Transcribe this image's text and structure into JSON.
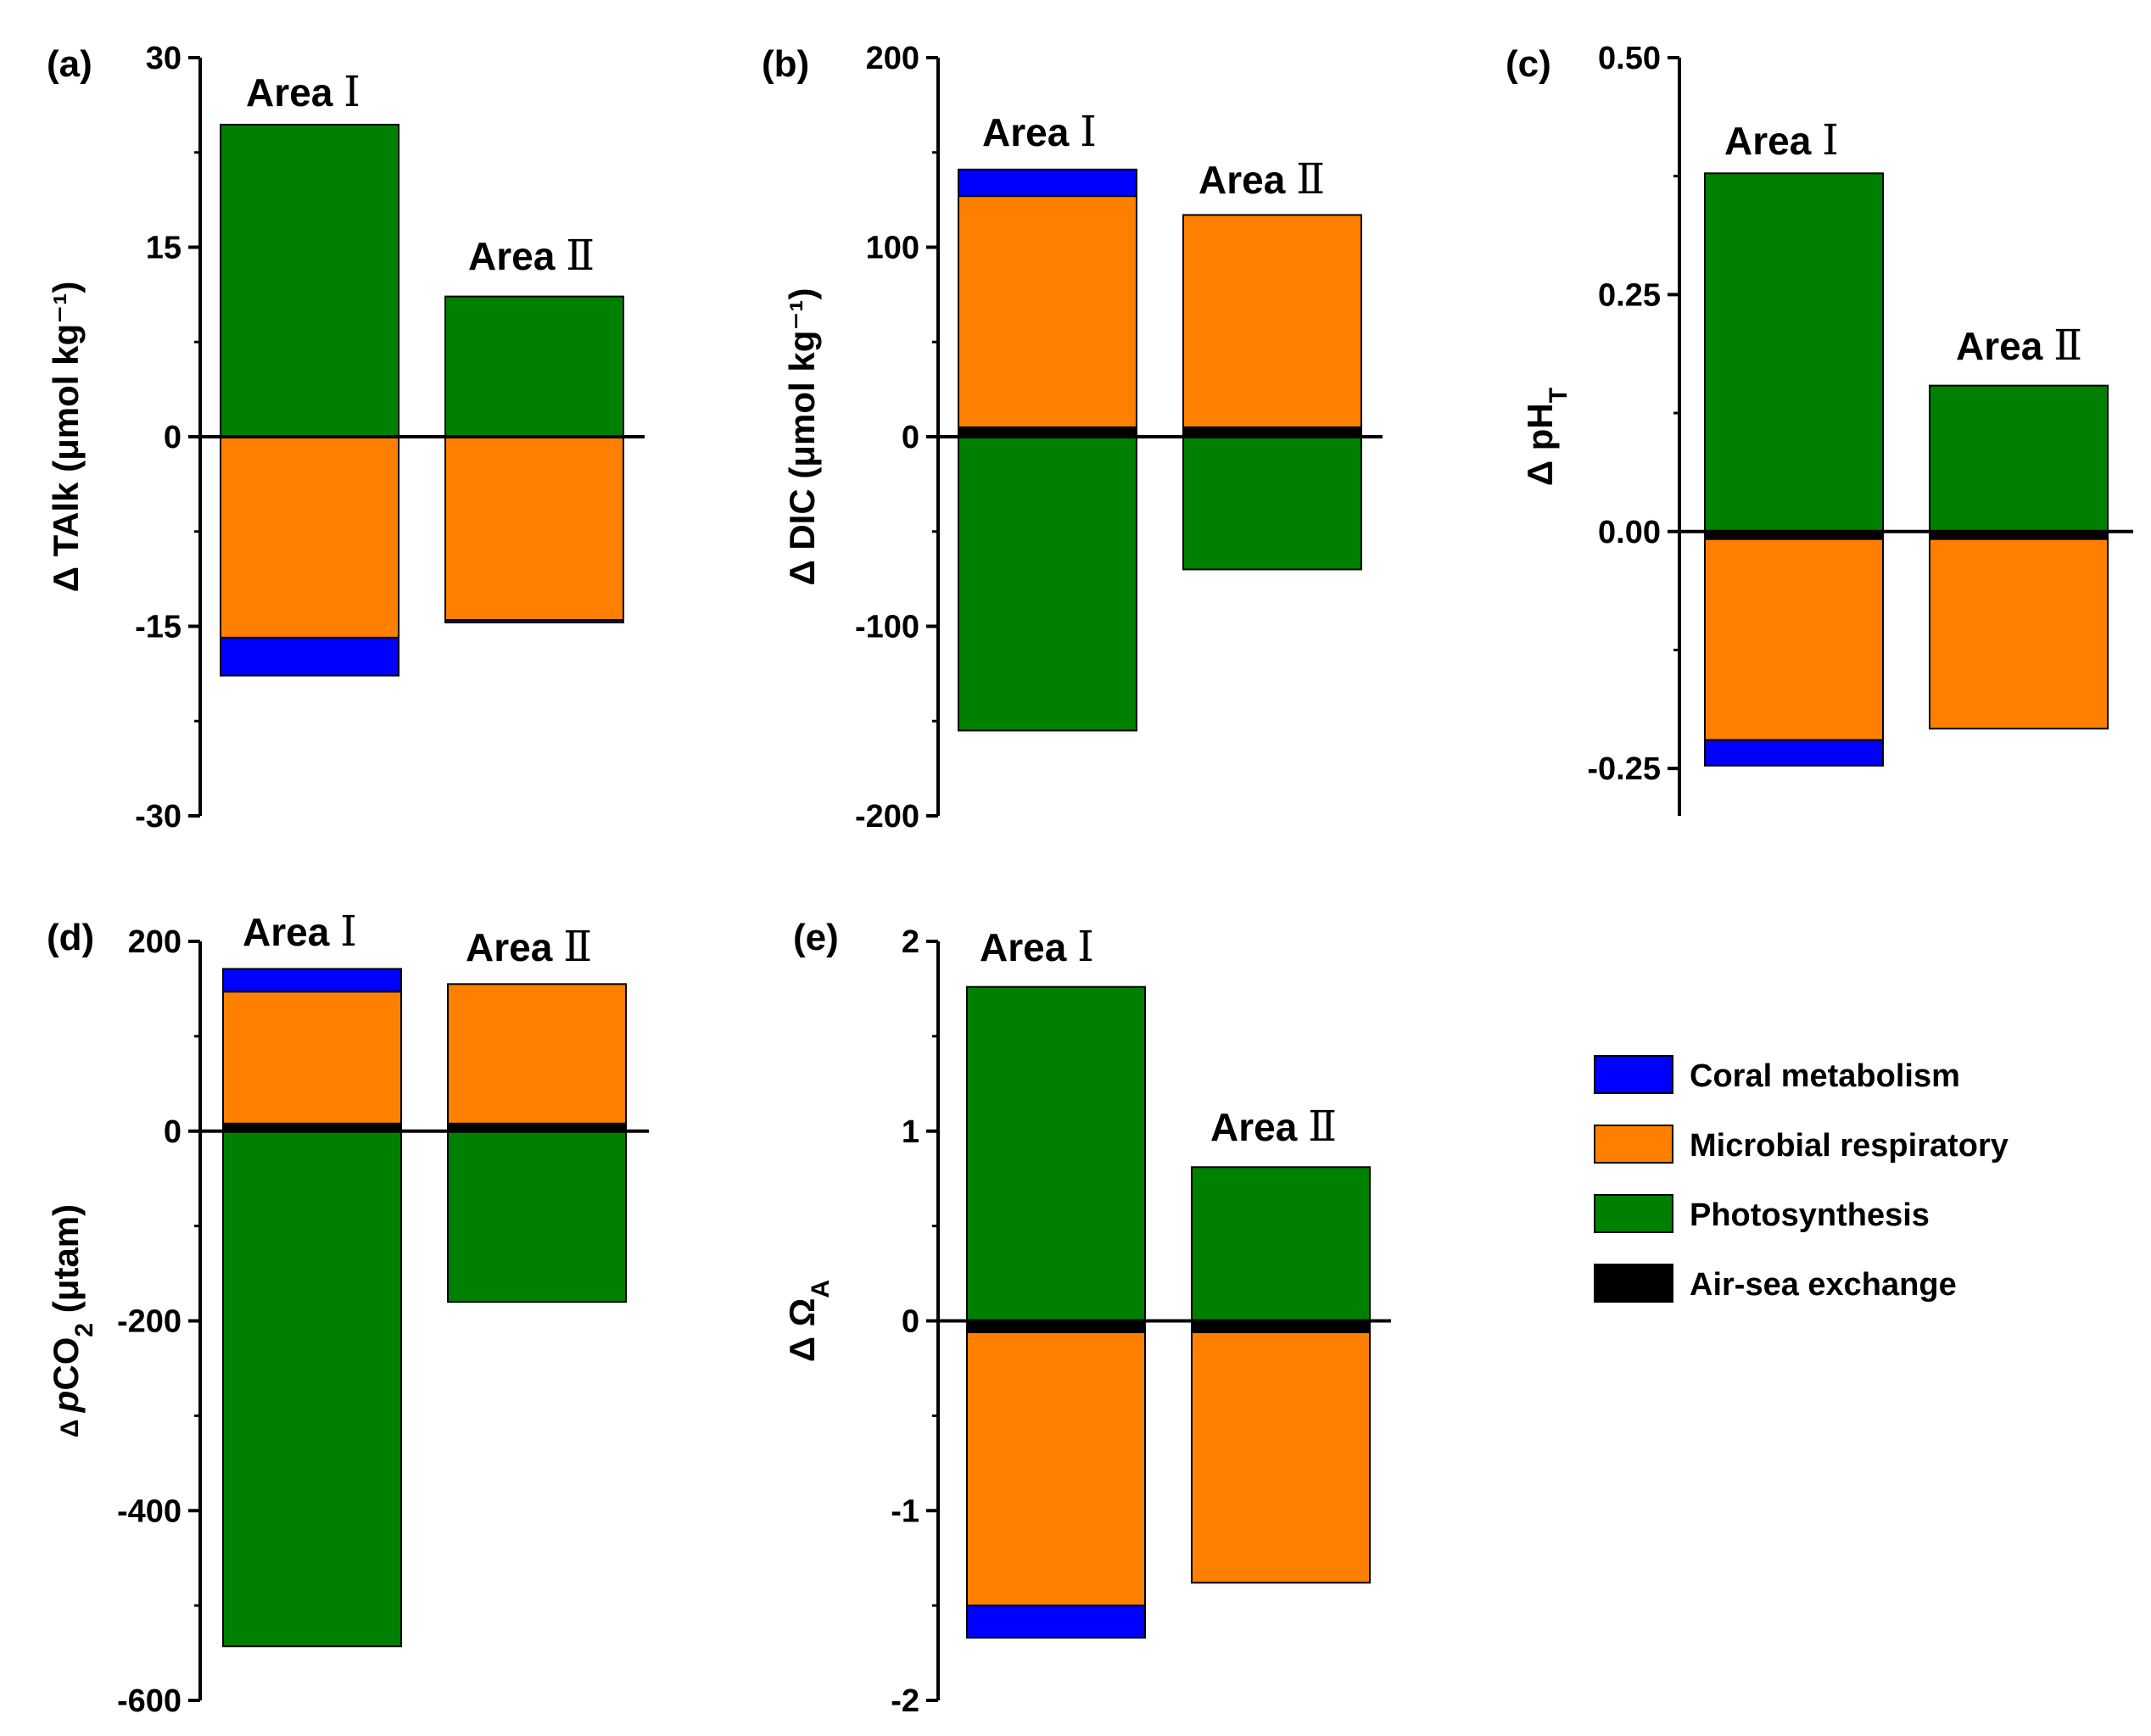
{
  "figure": {
    "legend": [
      {
        "key": "coral",
        "label": "Coral metabolism",
        "color": "#0000FF"
      },
      {
        "key": "microbial",
        "label": "Microbial respiratory",
        "color": "#FF8000"
      },
      {
        "key": "photosynthesis",
        "label": "Photosynthesis",
        "color": "#008000"
      },
      {
        "key": "airsea",
        "label": "Air-sea exchange",
        "color": "#000000"
      }
    ]
  },
  "chart_data": [
    {
      "id": "a",
      "type": "bar",
      "stacked": true,
      "panel_label": "(a)",
      "ylabel": "Δ TAlk (μmol kg⁻¹)",
      "ylim": [
        -30,
        30
      ],
      "yticks": [
        "30",
        "15",
        "0",
        "-15",
        "-30"
      ],
      "ytick_values": [
        30,
        15,
        0,
        -15,
        -30
      ],
      "categories": [
        {
          "area": "Area",
          "numeral": "Ⅰ"
        },
        {
          "area": "Area",
          "numeral": "Ⅱ"
        }
      ],
      "series": [
        {
          "name": "Photosynthesis",
          "values": [
            24.7,
            11.1
          ]
        },
        {
          "name": "Microbial respiratory",
          "values": [
            -15.9,
            -14.5
          ]
        },
        {
          "name": "Coral metabolism",
          "values": [
            -3.0,
            -0.2
          ]
        },
        {
          "name": "Air-sea exchange",
          "values": [
            0,
            0
          ]
        }
      ]
    },
    {
      "id": "b",
      "type": "bar",
      "stacked": true,
      "panel_label": "(b)",
      "ylabel": "Δ DIC (μmol kg⁻¹)",
      "ylim": [
        -200,
        200
      ],
      "yticks": [
        "200",
        "100",
        "0",
        "-100",
        "-200"
      ],
      "ytick_values": [
        200,
        100,
        0,
        -100,
        -200
      ],
      "categories": [
        {
          "area": "Area",
          "numeral": "Ⅰ"
        },
        {
          "area": "Area",
          "numeral": "Ⅱ"
        }
      ],
      "series": [
        {
          "name": "Air-sea exchange",
          "values": [
            5,
            5
          ]
        },
        {
          "name": "Microbial respiratory",
          "values": [
            122,
            112
          ]
        },
        {
          "name": "Coral metabolism",
          "values": [
            14,
            0
          ]
        },
        {
          "name": "Photosynthesis",
          "values": [
            -155,
            -70
          ]
        }
      ]
    },
    {
      "id": "c",
      "type": "bar",
      "stacked": true,
      "panel_label": "(c)",
      "ylabel": "Δ pH",
      "ylabel_sub": "T",
      "ylim": [
        -0.3,
        0.5
      ],
      "yticks": [
        "0.50",
        "0.25",
        "0.00",
        "-0.25"
      ],
      "ytick_values": [
        0.5,
        0.25,
        0,
        -0.25
      ],
      "categories": [
        {
          "area": "Area",
          "numeral": "Ⅰ"
        },
        {
          "area": "Area",
          "numeral": "Ⅱ"
        }
      ],
      "series": [
        {
          "name": "Photosynthesis",
          "values": [
            0.378,
            0.154
          ]
        },
        {
          "name": "Air-sea exchange",
          "values": [
            -0.008,
            -0.008
          ]
        },
        {
          "name": "Microbial respiratory",
          "values": [
            -0.212,
            -0.2
          ]
        },
        {
          "name": "Coral metabolism",
          "values": [
            -0.027,
            0
          ]
        }
      ]
    },
    {
      "id": "d",
      "type": "bar",
      "stacked": true,
      "panel_label": "(d)",
      "ylabel_prefix": "Δ",
      "ylabel_italic": "p",
      "ylabel": "CO",
      "ylabel_sub": "2",
      "ylabel_suffix": " (μtam)",
      "ylim": [
        -600,
        200
      ],
      "yticks": [
        "200",
        "0",
        "-200",
        "-400",
        "-600"
      ],
      "ytick_values": [
        200,
        0,
        -200,
        -400,
        -600
      ],
      "categories": [
        {
          "area": "Area",
          "numeral": "Ⅰ"
        },
        {
          "area": "Area",
          "numeral": "Ⅱ"
        }
      ],
      "series": [
        {
          "name": "Air-sea exchange",
          "values": [
            8,
            8
          ]
        },
        {
          "name": "Microbial respiratory",
          "values": [
            139,
            147
          ]
        },
        {
          "name": "Coral metabolism",
          "values": [
            24,
            0
          ]
        },
        {
          "name": "Photosynthesis",
          "values": [
            -543,
            -180
          ]
        }
      ]
    },
    {
      "id": "e",
      "type": "bar",
      "stacked": true,
      "panel_label": "(e)",
      "ylabel": "Δ Ω",
      "ylabel_sub": "A",
      "ylim": [
        -2,
        2
      ],
      "yticks": [
        "2",
        "1",
        "0",
        "-1",
        "-2"
      ],
      "ytick_values": [
        2,
        1,
        0,
        -1,
        -2
      ],
      "categories": [
        {
          "area": "Area",
          "numeral": "Ⅰ"
        },
        {
          "area": "Area",
          "numeral": "Ⅱ"
        }
      ],
      "series": [
        {
          "name": "Photosynthesis",
          "values": [
            1.76,
            0.81
          ]
        },
        {
          "name": "Air-sea exchange",
          "values": [
            -0.06,
            -0.06
          ]
        },
        {
          "name": "Microbial respiratory",
          "values": [
            -1.44,
            -1.32
          ]
        },
        {
          "name": "Coral metabolism",
          "values": [
            -0.17,
            0
          ]
        }
      ]
    }
  ]
}
